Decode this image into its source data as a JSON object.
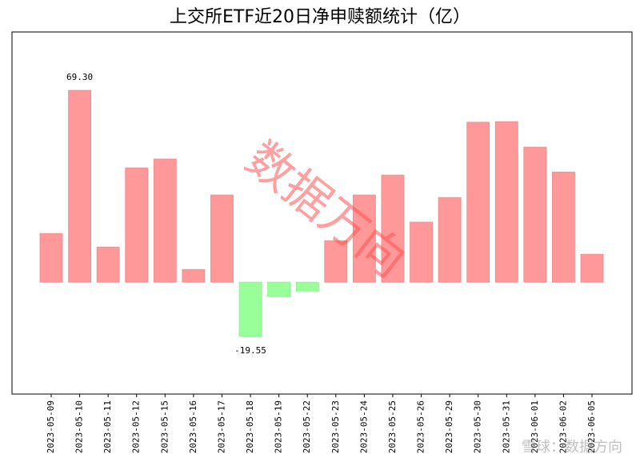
{
  "chart_data": {
    "type": "bar",
    "title": "上交所ETF近20日净申赎额统计（亿）",
    "categories": [
      "2023-05-09",
      "2023-05-10",
      "2023-05-11",
      "2023-05-12",
      "2023-05-15",
      "2023-05-16",
      "2023-05-17",
      "2023-05-18",
      "2023-05-19",
      "2023-05-22",
      "2023-05-23",
      "2023-05-24",
      "2023-05-25",
      "2023-05-26",
      "2023-05-29",
      "2023-05-30",
      "2023-05-31",
      "2023-06-01",
      "2023-06-02",
      "2023-06-05"
    ],
    "values": [
      17.6,
      69.3,
      12.7,
      41.3,
      44.5,
      4.6,
      31.5,
      -19.55,
      -5.2,
      -3.2,
      15.0,
      31.5,
      38.7,
      21.7,
      30.6,
      57.8,
      58.0,
      48.8,
      39.8,
      10.1
    ],
    "value_labels": [
      null,
      "69.30",
      null,
      null,
      null,
      null,
      null,
      "-19.55",
      null,
      null,
      null,
      null,
      null,
      null,
      null,
      null,
      null,
      null,
      null,
      null
    ],
    "positive_color": "#ff9999",
    "negative_color": "#99ff99",
    "ylim": [
      -40.4,
      90.4
    ],
    "watermark": "数据万向",
    "source": "雪球：数据方向"
  }
}
